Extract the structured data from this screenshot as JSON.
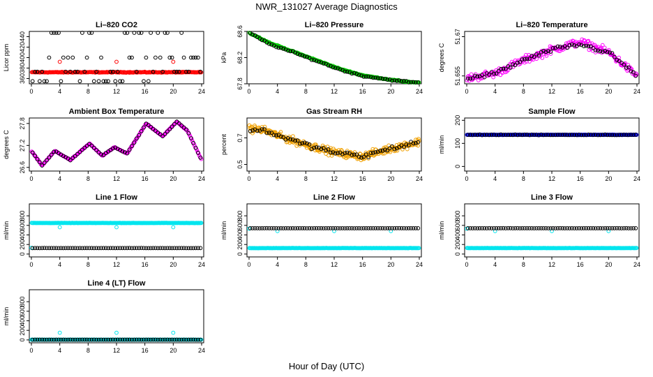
{
  "page": {
    "title": "NWR_131027  Average Diagnostics",
    "xlabel": "Hour of Day (UTC)"
  },
  "colors": {
    "black": "#000000",
    "red": "#ff0000",
    "green": "#00cc00",
    "magenta": "#ff00ff",
    "orange": "#f0a000",
    "blue": "#0000ff",
    "cyan": "#00e5ee"
  },
  "chart_data": [
    {
      "type": "scatter",
      "title": "Li–820 CO2",
      "ylabel": "Licor ppm",
      "xlim": [
        0,
        24
      ],
      "ylim": [
        350,
        450
      ],
      "xticks": [
        0,
        4,
        8,
        12,
        16,
        20,
        24
      ],
      "yticks": [
        360,
        380,
        400,
        420,
        440
      ],
      "series": [
        {
          "color": "red",
          "pattern": "band",
          "y": 372,
          "noise": 1,
          "count": 220
        },
        {
          "color": "black",
          "pattern": "levels",
          "levels": [
            450,
            400,
            373,
            355
          ],
          "count": 72
        },
        {
          "color": "red",
          "pattern": "points",
          "x": [
            4,
            12,
            20
          ],
          "y": [
            392,
            392,
            392
          ]
        }
      ]
    },
    {
      "type": "scatter",
      "title": "Li–820 Pressure",
      "ylabel": "kPa",
      "xlim": [
        0,
        24
      ],
      "ylim": [
        67.8,
        68.6
      ],
      "xticks": [
        0,
        4,
        8,
        12,
        16,
        20,
        24
      ],
      "yticks": [
        67.8,
        68.2,
        68.6
      ],
      "series": [
        {
          "color": "green",
          "pattern": "curve",
          "kp": [
            [
              0,
              68.58
            ],
            [
              3,
              68.42
            ],
            [
              6,
              68.3
            ],
            [
              10,
              68.14
            ],
            [
              13,
              68.02
            ],
            [
              16,
              67.93
            ],
            [
              20,
              67.86
            ],
            [
              24,
              67.81
            ]
          ],
          "noise": 0.012,
          "count": 220
        },
        {
          "color": "black",
          "pattern": "curve",
          "kp": [
            [
              0,
              68.58
            ],
            [
              3,
              68.4
            ],
            [
              6,
              68.29
            ],
            [
              10,
              68.13
            ],
            [
              13,
              68.01
            ],
            [
              16,
              67.92
            ],
            [
              20,
              67.86
            ],
            [
              24,
              67.81
            ]
          ],
          "noise": 0.015,
          "count": 72
        }
      ]
    },
    {
      "type": "scatter",
      "title": "Li–820 Temperature",
      "ylabel": "degrees C",
      "xlim": [
        0,
        24
      ],
      "ylim": [
        51.652,
        51.672
      ],
      "xticks": [
        0,
        4,
        8,
        12,
        16,
        20,
        24
      ],
      "yticks": [
        51.655,
        51.67
      ],
      "series": [
        {
          "color": "magenta",
          "pattern": "curve",
          "kp": [
            [
              0,
              51.654
            ],
            [
              4,
              51.656
            ],
            [
              8,
              51.661
            ],
            [
              12,
              51.665
            ],
            [
              16,
              51.668
            ],
            [
              20,
              51.664
            ],
            [
              24,
              51.655
            ]
          ],
          "noise": 0.0022,
          "count": 240
        },
        {
          "color": "black",
          "pattern": "curve",
          "kp": [
            [
              0,
              51.654
            ],
            [
              4,
              51.656
            ],
            [
              8,
              51.661
            ],
            [
              12,
              51.665
            ],
            [
              16,
              51.667
            ],
            [
              20,
              51.664
            ],
            [
              24,
              51.655
            ]
          ],
          "noise": 0.0012,
          "count": 72
        }
      ]
    },
    {
      "type": "scatter",
      "title": "Ambient Box Temperature",
      "ylabel": "degrees C",
      "xlim": [
        0,
        24
      ],
      "ylim": [
        26.5,
        27.95
      ],
      "xticks": [
        0,
        4,
        8,
        12,
        16,
        20,
        24
      ],
      "yticks": [
        26.6,
        27.2,
        27.8
      ],
      "series": [
        {
          "color": "magenta",
          "pattern": "curve",
          "kp": [
            [
              0,
              27.05
            ],
            [
              1.5,
              26.65
            ],
            [
              3.3,
              27.05
            ],
            [
              5.5,
              26.8
            ],
            [
              8.2,
              27.25
            ],
            [
              10,
              26.92
            ],
            [
              11.7,
              27.15
            ],
            [
              13.5,
              26.98
            ],
            [
              16.2,
              27.8
            ],
            [
              18.5,
              27.45
            ],
            [
              20.5,
              27.85
            ],
            [
              22,
              27.6
            ],
            [
              24,
              26.8
            ]
          ],
          "noise": 0.015,
          "count": 240
        },
        {
          "color": "black",
          "pattern": "curve",
          "kp": [
            [
              0,
              27.05
            ],
            [
              1.5,
              26.65
            ],
            [
              3.3,
              27.05
            ],
            [
              5.5,
              26.8
            ],
            [
              8.2,
              27.25
            ],
            [
              10,
              26.92
            ],
            [
              11.7,
              27.15
            ],
            [
              13.5,
              26.98
            ],
            [
              16.2,
              27.8
            ],
            [
              18.5,
              27.45
            ],
            [
              20.5,
              27.85
            ],
            [
              22,
              27.6
            ],
            [
              24,
              26.8
            ]
          ],
          "noise": 0.01,
          "count": 72
        }
      ]
    },
    {
      "type": "scatter",
      "title": "Gas Stream RH",
      "ylabel": "percent",
      "xlim": [
        0,
        24
      ],
      "ylim": [
        0.45,
        0.85
      ],
      "xticks": [
        0,
        4,
        8,
        12,
        16,
        20,
        24
      ],
      "yticks": [
        0.5,
        0.7
      ],
      "series": [
        {
          "color": "orange",
          "pattern": "curve",
          "kp": [
            [
              0,
              0.77
            ],
            [
              2,
              0.76
            ],
            [
              5,
              0.7
            ],
            [
              8,
              0.65
            ],
            [
              12,
              0.59
            ],
            [
              16,
              0.56
            ],
            [
              20,
              0.62
            ],
            [
              24,
              0.67
            ]
          ],
          "noise": 0.04,
          "count": 320
        },
        {
          "color": "black",
          "pattern": "curve",
          "kp": [
            [
              0,
              0.76
            ],
            [
              2,
              0.76
            ],
            [
              5,
              0.7
            ],
            [
              8,
              0.65
            ],
            [
              12,
              0.59
            ],
            [
              16,
              0.56
            ],
            [
              20,
              0.62
            ],
            [
              24,
              0.67
            ]
          ],
          "noise": 0.025,
          "count": 72
        }
      ]
    },
    {
      "type": "scatter",
      "title": "Sample Flow",
      "ylabel": "ml/min",
      "xlim": [
        0,
        24
      ],
      "ylim": [
        -20,
        210
      ],
      "xticks": [
        0,
        4,
        8,
        12,
        16,
        20,
        24
      ],
      "yticks": [
        0,
        100,
        200
      ],
      "series": [
        {
          "color": "blue",
          "pattern": "band",
          "y": 137,
          "noise": 1,
          "count": 240
        },
        {
          "color": "black",
          "pattern": "band",
          "y": 137,
          "noise": 2,
          "count": 72
        }
      ]
    },
    {
      "type": "scatter",
      "title": "Line 1 Flow",
      "ylabel": "ml/min",
      "xlim": [
        0,
        24
      ],
      "ylim": [
        -60,
        1050
      ],
      "xticks": [
        0,
        4,
        8,
        12,
        16,
        20,
        24
      ],
      "yticks": [
        0,
        200,
        400,
        600,
        800
      ],
      "series": [
        {
          "color": "cyan",
          "pattern": "band",
          "y": 650,
          "noise": 4,
          "count": 240
        },
        {
          "color": "cyan",
          "pattern": "points",
          "x": [
            0,
            4,
            12,
            20
          ],
          "y": [
            130,
            560,
            560,
            560
          ]
        },
        {
          "color": "black",
          "pattern": "band",
          "y": 125,
          "noise": 2,
          "count": 72
        }
      ]
    },
    {
      "type": "scatter",
      "title": "Line 2 Flow",
      "ylabel": "ml/min",
      "xlim": [
        0,
        24
      ],
      "ylim": [
        -60,
        1050
      ],
      "xticks": [
        0,
        4,
        8,
        12,
        16,
        20,
        24
      ],
      "yticks": [
        0,
        200,
        400,
        600,
        800
      ],
      "series": [
        {
          "color": "cyan",
          "pattern": "band",
          "y": 125,
          "noise": 4,
          "count": 240
        },
        {
          "color": "cyan",
          "pattern": "points",
          "x": [
            0,
            4,
            12,
            20
          ],
          "y": [
            530,
            480,
            480,
            480
          ]
        },
        {
          "color": "black",
          "pattern": "band",
          "y": 540,
          "noise": 2,
          "count": 72
        }
      ]
    },
    {
      "type": "scatter",
      "title": "Line 3 Flow",
      "ylabel": "ml/min",
      "xlim": [
        0,
        24
      ],
      "ylim": [
        -60,
        1050
      ],
      "xticks": [
        0,
        4,
        8,
        12,
        16,
        20,
        24
      ],
      "yticks": [
        0,
        200,
        400,
        600,
        800
      ],
      "series": [
        {
          "color": "cyan",
          "pattern": "band",
          "y": 125,
          "noise": 4,
          "count": 240
        },
        {
          "color": "cyan",
          "pattern": "points",
          "x": [
            0,
            4,
            12,
            20
          ],
          "y": [
            530,
            480,
            480,
            480
          ]
        },
        {
          "color": "black",
          "pattern": "band",
          "y": 540,
          "noise": 2,
          "count": 72
        }
      ]
    },
    {
      "type": "scatter",
      "title": "Line 4 (LT) Flow",
      "ylabel": "ml/min",
      "xlim": [
        0,
        24
      ],
      "ylim": [
        -60,
        1050
      ],
      "xticks": [
        0,
        4,
        8,
        12,
        16,
        20,
        24
      ],
      "yticks": [
        0,
        200,
        400,
        600,
        800
      ],
      "series": [
        {
          "color": "cyan",
          "pattern": "band",
          "y": 5,
          "noise": 2,
          "count": 240
        },
        {
          "color": "cyan",
          "pattern": "points",
          "x": [
            0,
            4,
            12,
            20
          ],
          "y": [
            5,
            150,
            150,
            150
          ]
        },
        {
          "color": "black",
          "pattern": "band",
          "y": 5,
          "noise": 2,
          "count": 72
        }
      ]
    }
  ]
}
